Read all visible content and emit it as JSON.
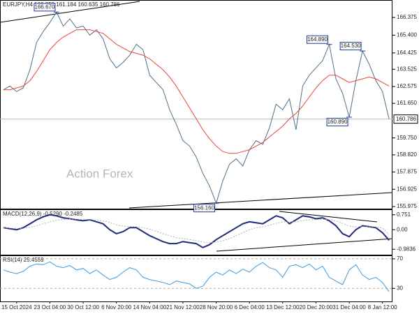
{
  "chart_data": [
    {
      "type": "line",
      "title": "EURJPY,H4  160.850 161.184 160.635 160.786",
      "watermark": "Action Forex",
      "categories": [
        null,
        null,
        "15 Oct 2024",
        null,
        null,
        null,
        null,
        "23 Oct 04:00",
        null,
        null,
        null,
        null,
        "30 Oct 12:00",
        null,
        null,
        null,
        null,
        "6 Nov 20:00",
        null,
        null,
        null,
        null,
        "14 Nov 04:00",
        null,
        null,
        null,
        null,
        "21 Nov 12:00",
        null,
        null,
        null,
        null,
        "28 Nov 20:00",
        null,
        null,
        null,
        null,
        "6 Dec 04:00",
        null,
        null,
        null,
        null,
        "13 Dec 12:00",
        null,
        null,
        null,
        null,
        "20 Dec 20:00",
        null,
        null,
        null,
        null,
        "31 Dec 04:00",
        null,
        null,
        null,
        null,
        "8 Jan 12:00",
        null
      ],
      "series": [
        {
          "color": "#4d7088",
          "values": [
            162.4,
            162.6,
            162.3,
            162.5,
            163.5,
            165.0,
            165.6,
            166.1,
            166.67,
            165.9,
            166.3,
            165.8,
            165.9,
            165.4,
            165.7,
            165.2,
            164.1,
            163.6,
            163.9,
            164.3,
            164.9,
            164.6,
            163.2,
            162.8,
            162.4,
            161.3,
            160.5,
            159.6,
            159.3,
            158.7,
            157.8,
            157.1,
            156.16,
            157.4,
            158.3,
            158.6,
            158.2,
            159.1,
            159.6,
            159.4,
            160.3,
            161.6,
            161.3,
            161.9,
            160.2,
            162.6,
            163.2,
            163.6,
            164.0,
            164.89,
            163.0,
            162.2,
            160.89,
            162.9,
            164.53,
            163.8,
            162.9,
            162.3,
            160.786
          ]
        },
        {
          "color": "#e8453c",
          "values": [
            162.4,
            162.4,
            162.5,
            162.6,
            162.9,
            163.4,
            164.0,
            164.6,
            165.0,
            165.3,
            165.5,
            165.7,
            165.7,
            165.7,
            165.6,
            165.5,
            165.2,
            164.9,
            164.7,
            164.5,
            164.4,
            164.3,
            164.1,
            163.8,
            163.5,
            163.1,
            162.6,
            162.0,
            161.4,
            160.8,
            160.2,
            159.7,
            159.3,
            159.0,
            158.9,
            158.9,
            159.0,
            159.1,
            159.3,
            159.5,
            159.8,
            160.1,
            160.4,
            160.8,
            161.1,
            161.5,
            162.0,
            162.5,
            162.9,
            163.2,
            163.2,
            163.0,
            162.8,
            162.9,
            163.0,
            163.1,
            163.0,
            162.8,
            162.6
          ]
        }
      ],
      "annotations": [
        {
          "value": 166.67,
          "label": "166.670"
        },
        {
          "value": 164.89,
          "label": "164.890"
        },
        {
          "value": 164.53,
          "label": "164.530"
        },
        {
          "value": 160.89,
          "label": "160.890"
        },
        {
          "value": 156.16,
          "label": "156.160"
        }
      ],
      "last_price": 160.786,
      "ylim": [
        155.86,
        167.22
      ],
      "yticks": [
        166.375,
        {
          "value": 165.4,
          "label": "165.400"
        },
        164.425,
        163.525,
        162.575,
        {
          "value": 161.65,
          "label": "161.650"
        },
        {
          "value": 159.75,
          "label": "159.750"
        },
        {
          "value": 158.82,
          "label": "158.820"
        },
        157.875,
        156.925,
        155.975
      ],
      "grid": false
    },
    {
      "type": "line",
      "title": "MACD(12,26,9) -0.5290 -0.2485",
      "series": [
        {
          "color": "#1f2a7a",
          "values": [
            0.1,
            0.05,
            0.0,
            0.1,
            0.3,
            0.5,
            0.65,
            0.75,
            0.7,
            0.6,
            0.55,
            0.5,
            0.45,
            0.5,
            0.4,
            0.3,
            0.0,
            -0.2,
            -0.1,
            0.1,
            0.1,
            -0.1,
            -0.3,
            -0.45,
            -0.6,
            -0.7,
            -0.7,
            -0.6,
            -0.65,
            -0.7,
            -0.9,
            -0.75,
            -0.5,
            -0.3,
            -0.1,
            0.1,
            0.3,
            0.4,
            0.35,
            0.3,
            0.5,
            0.7,
            0.6,
            0.3,
            0.5,
            0.7,
            0.65,
            0.55,
            0.6,
            0.45,
            0.2,
            -0.2,
            -0.35,
            0.0,
            0.2,
            0.15,
            0.1,
            -0.15,
            -0.529
          ]
        },
        {
          "color": "#b0b0b0",
          "values": [
            0.1,
            0.08,
            0.06,
            0.07,
            0.12,
            0.2,
            0.3,
            0.4,
            0.48,
            0.52,
            0.54,
            0.53,
            0.52,
            0.51,
            0.49,
            0.45,
            0.36,
            0.25,
            0.18,
            0.16,
            0.15,
            0.1,
            0.02,
            -0.08,
            -0.2,
            -0.3,
            -0.4,
            -0.45,
            -0.5,
            -0.55,
            -0.62,
            -0.65,
            -0.62,
            -0.55,
            -0.45,
            -0.3,
            -0.15,
            0.0,
            0.1,
            0.15,
            0.22,
            0.32,
            0.4,
            0.38,
            0.4,
            0.46,
            0.5,
            0.51,
            0.53,
            0.51,
            0.45,
            0.32,
            0.18,
            0.14,
            0.15,
            0.15,
            0.14,
            0.08,
            -0.2485
          ]
        }
      ],
      "ylim": [
        -1.257,
        0.99
      ],
      "yticks": [
        0.751,
        {
          "value": 0,
          "label": "0.00"
        },
        -0.9836
      ],
      "grid": false
    },
    {
      "type": "line",
      "title": "RSI(14) 25.4559",
      "series": [
        {
          "color": "#3c9be0",
          "values": [
            55,
            52,
            50,
            53,
            60,
            63,
            62,
            66,
            60,
            58,
            61,
            55,
            57,
            50,
            55,
            48,
            42,
            45,
            52,
            58,
            55,
            45,
            42,
            40,
            38,
            35,
            40,
            38,
            36,
            30,
            33,
            45,
            52,
            48,
            55,
            50,
            56,
            52,
            60,
            65,
            58,
            55,
            45,
            60,
            62,
            58,
            63,
            55,
            60,
            45,
            40,
            35,
            55,
            62,
            48,
            42,
            45,
            38,
            25.4559
          ]
        }
      ],
      "ylim": [
        12.3,
        73.7
      ],
      "yticks": [
        70,
        30
      ],
      "grid": true
    }
  ]
}
